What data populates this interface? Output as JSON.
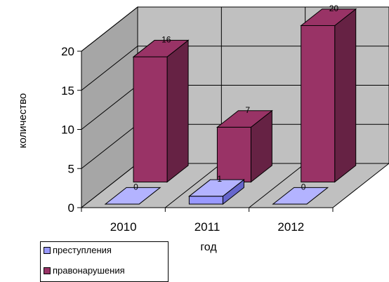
{
  "chart_data": {
    "type": "bar",
    "style": "3d-clustered-depth",
    "categories": [
      "2010",
      "2011",
      "2012"
    ],
    "series": [
      {
        "name": "преступления",
        "values": [
          0,
          1,
          0
        ],
        "color": "#9999FF",
        "side": "#6666CC",
        "top": "#B3B3FF"
      },
      {
        "name": "правонарушения",
        "values": [
          16,
          7,
          20
        ],
        "color": "#993366",
        "side": "#662244",
        "top": "#993366"
      }
    ],
    "ylabel": "количество",
    "xlabel": "год",
    "ylim": [
      0,
      20
    ],
    "yticks": [
      0,
      5,
      10,
      15,
      20
    ],
    "grid": true,
    "walls_color": "#C0C0C0",
    "floor_color": "#C0C0C0",
    "legend_position": "bottom-left"
  }
}
